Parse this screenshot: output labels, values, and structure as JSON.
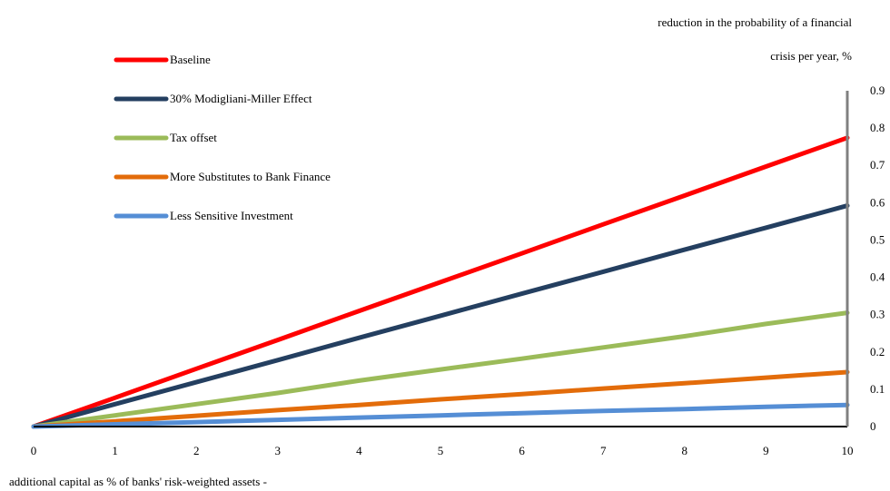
{
  "chart_data": {
    "type": "line",
    "ylabel_line1": "reduction in the probability of a financial",
    "ylabel_line2": "crisis per year, %",
    "xlabel": "additional capital as % of banks' risk-weighted assets   -",
    "x": [
      0,
      1,
      2,
      3,
      4,
      5,
      6,
      7,
      8,
      9,
      10
    ],
    "x_tick_labels": [
      "0",
      "1",
      "2",
      "3",
      "4",
      "5",
      "6",
      "7",
      "8",
      "9",
      "10"
    ],
    "y_tick_labels": [
      "0",
      "0.1",
      "0.2",
      "0.3",
      "0.4",
      "0.5",
      "0.6",
      "0.7",
      "0.8",
      "0.9"
    ],
    "xlim": [
      0,
      10
    ],
    "ylim": [
      0,
      0.9
    ],
    "y_axis_side": "right",
    "grid": false,
    "legend_position": "top-left",
    "series": [
      {
        "name": "Baseline",
        "color": "#ff0000",
        "values": [
          0,
          0.077,
          0.155,
          0.232,
          0.31,
          0.387,
          0.464,
          0.542,
          0.619,
          0.697,
          0.774
        ]
      },
      {
        "name": "30% Modigliani-Miller Effect",
        "color": "#243f60",
        "values": [
          0,
          0.06,
          0.119,
          0.178,
          0.238,
          0.297,
          0.356,
          0.415,
          0.474,
          0.533,
          0.592
        ]
      },
      {
        "name": "Tax offset",
        "color": "#9bbb59",
        "values": [
          0,
          0.03,
          0.06,
          0.09,
          0.123,
          0.153,
          0.182,
          0.212,
          0.242,
          0.275,
          0.305
        ]
      },
      {
        "name": "More  Substitutes to Bank Finance",
        "color": "#e36c0a",
        "values": [
          0,
          0.014,
          0.029,
          0.044,
          0.058,
          0.073,
          0.087,
          0.102,
          0.116,
          0.131,
          0.146
        ]
      },
      {
        "name": "Less Sensitive Investment",
        "color": "#558ed5",
        "values": [
          0,
          0.006,
          0.012,
          0.018,
          0.024,
          0.03,
          0.036,
          0.042,
          0.047,
          0.053,
          0.058
        ]
      }
    ]
  }
}
